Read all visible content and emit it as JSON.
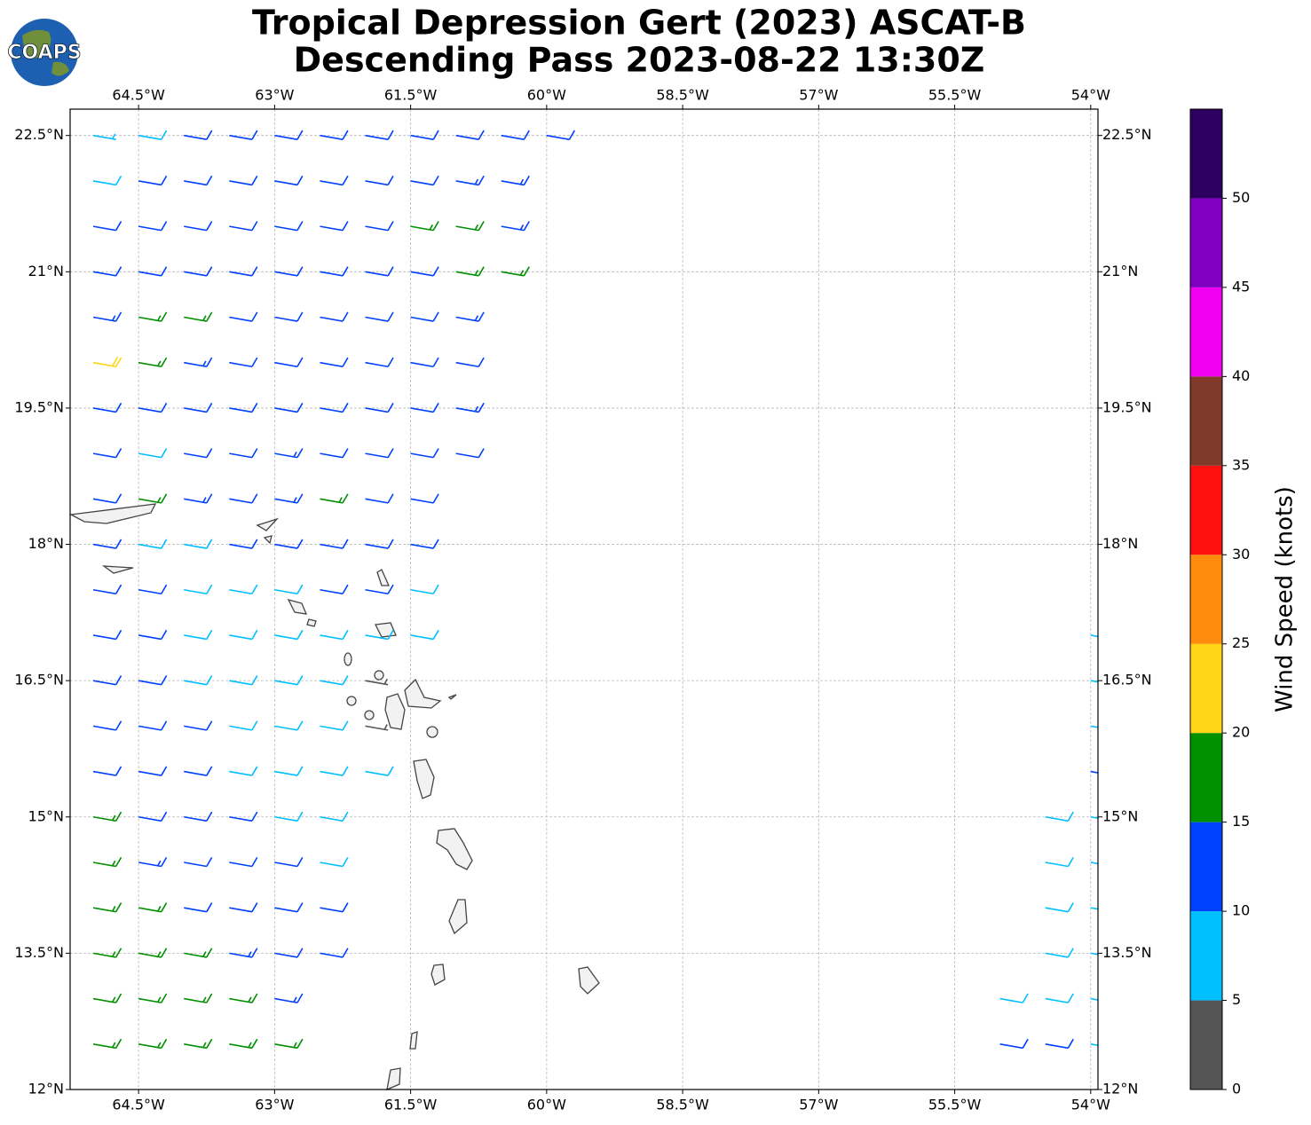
{
  "chart_data": {
    "type": "wind-barbs",
    "title": "Tropical Depression Gert (2023) ASCAT-B",
    "subtitle": "Descending Pass 2023-08-22 13:30Z",
    "logo": "COAPS",
    "xlim": [
      -65.255,
      -53.92
    ],
    "ylim": [
      12,
      22.79
    ],
    "xticks": [
      {
        "value": -64.5,
        "label": "64.5°W"
      },
      {
        "value": -63,
        "label": "63°W"
      },
      {
        "value": -61.5,
        "label": "61.5°W"
      },
      {
        "value": -60,
        "label": "60°W"
      },
      {
        "value": -58.5,
        "label": "58.5°W"
      },
      {
        "value": -57,
        "label": "57°W"
      },
      {
        "value": -55.5,
        "label": "55.5°W"
      },
      {
        "value": -54,
        "label": "54°W"
      }
    ],
    "yticks": [
      {
        "value": 12,
        "label": "12°N"
      },
      {
        "value": 13.5,
        "label": "13.5°N"
      },
      {
        "value": 15,
        "label": "15°N"
      },
      {
        "value": 16.5,
        "label": "16.5°N"
      },
      {
        "value": 18,
        "label": "18°N"
      },
      {
        "value": 19.5,
        "label": "19.5°N"
      },
      {
        "value": 21,
        "label": "21°N"
      },
      {
        "value": 22.5,
        "label": "22.5°N"
      }
    ],
    "grid": true,
    "direction_from_deg": 100,
    "colorbar": {
      "label": "Wind Speed (knots)",
      "bounds": [
        0,
        5,
        10,
        15,
        20,
        25,
        30,
        35,
        40,
        45,
        50,
        55
      ],
      "ticks": [
        0,
        5,
        10,
        15,
        20,
        25,
        30,
        35,
        40,
        45,
        50
      ],
      "colors": [
        "#555555",
        "#00bfff",
        "#0040ff",
        "#009000",
        "#ffd515",
        "#ff8c0c",
        "#ff1010",
        "#7f3a2a",
        "#f000f0",
        "#8000c0",
        "#2d0060"
      ]
    },
    "rows": [
      {
        "lat": 22.5,
        "lon": [
          -65,
          -64.5,
          -64,
          -63.5,
          -63,
          -62.5,
          -62,
          -61.5,
          -61,
          -60.5,
          -60
        ],
        "speed": [
          7,
          8,
          11,
          12,
          12,
          12,
          12,
          12,
          12,
          12,
          12
        ]
      },
      {
        "lat": 22,
        "lon": [
          -65,
          -64.5,
          -64,
          -63.5,
          -63,
          -62.5,
          -62,
          -61.5,
          -61,
          -60.5
        ],
        "speed": [
          9,
          11,
          12,
          12,
          12,
          12,
          12,
          12,
          13,
          13
        ]
      },
      {
        "lat": 21.5,
        "lon": [
          -65,
          -64.5,
          -64,
          -63.5,
          -63,
          -62.5,
          -62,
          -61.5,
          -61,
          -60.5
        ],
        "speed": [
          12,
          12,
          12,
          12,
          12,
          12,
          12,
          16,
          16,
          13
        ]
      },
      {
        "lat": 21,
        "lon": [
          -65,
          -64.5,
          -64,
          -63.5,
          -63,
          -62.5,
          -62,
          -61.5,
          -61,
          -60.5
        ],
        "speed": [
          12,
          12,
          12,
          12,
          12,
          12,
          12,
          12,
          16,
          16
        ]
      },
      {
        "lat": 20.5,
        "lon": [
          -65,
          -64.5,
          -64,
          -63.5,
          -63,
          -62.5,
          -62,
          -61.5,
          -61
        ],
        "speed": [
          13,
          16,
          17,
          12,
          12,
          12,
          12,
          12,
          13
        ]
      },
      {
        "lat": 20,
        "lon": [
          -65,
          -64.5,
          -64,
          -63.5,
          -63,
          -62.5,
          -62,
          -61.5,
          -61
        ],
        "speed": [
          21,
          17,
          13,
          12,
          12,
          12,
          12,
          12,
          12
        ]
      },
      {
        "lat": 19.5,
        "lon": [
          -65,
          -64.5,
          -64,
          -63.5,
          -63,
          -62.5,
          -62,
          -61.5,
          -61
        ],
        "speed": [
          12,
          12,
          12,
          12,
          12,
          12,
          12,
          12,
          13
        ]
      },
      {
        "lat": 19,
        "lon": [
          -65,
          -64.5,
          -64,
          -63.5,
          -63,
          -62.5,
          -62,
          -61.5,
          -61
        ],
        "speed": [
          12,
          9,
          12,
          12,
          13,
          12,
          12,
          12,
          12
        ]
      },
      {
        "lat": 18.5,
        "lon": [
          -65,
          -64.5,
          -64,
          -63.5,
          -63,
          -62.5,
          -62,
          -61.5
        ],
        "speed": [
          12,
          16,
          13,
          12,
          13,
          16,
          12,
          12
        ]
      },
      {
        "lat": 18,
        "lon": [
          -65,
          -64.5,
          -64,
          -63.5,
          -63,
          -62.5,
          -62,
          -61.5
        ],
        "speed": [
          12,
          8,
          9,
          12,
          12,
          12,
          12,
          12
        ]
      },
      {
        "lat": 17.5,
        "lon": [
          -65,
          -64.5,
          -64,
          -63.5,
          -63,
          -62.5,
          -62,
          -61.5
        ],
        "speed": [
          12,
          12,
          9,
          8,
          9,
          12,
          12,
          9
        ]
      },
      {
        "lat": 17,
        "lon": [
          -65,
          -64.5,
          -64,
          -63.5,
          -63,
          -62.5,
          -62,
          -61.5
        ],
        "speed": [
          12,
          12,
          9,
          8,
          8,
          8,
          9,
          9
        ]
      },
      {
        "lat": 16.5,
        "lon": [
          -65,
          -64.5,
          -64,
          -63.5,
          -63,
          -62.5,
          -62
        ],
        "speed": [
          12,
          12,
          9,
          8,
          8,
          8,
          4
        ]
      },
      {
        "lat": 16,
        "lon": [
          -65,
          -64.5,
          -64,
          -63.5,
          -63,
          -62.5,
          -62
        ],
        "speed": [
          12,
          12,
          12,
          8,
          8,
          8,
          4
        ]
      },
      {
        "lat": 15.5,
        "lon": [
          -65,
          -64.5,
          -64,
          -63.5,
          -63,
          -62.5,
          -62
        ],
        "speed": [
          12,
          12,
          12,
          9,
          8,
          8,
          8
        ]
      },
      {
        "lat": 15,
        "lon": [
          -65,
          -64.5,
          -64,
          -63.5,
          -63,
          -62.5
        ],
        "speed": [
          16,
          12,
          12,
          12,
          8,
          8
        ]
      },
      {
        "lat": 14.5,
        "lon": [
          -65,
          -64.5,
          -64,
          -63.5,
          -63,
          -62.5
        ],
        "speed": [
          16,
          13,
          12,
          12,
          12,
          9
        ]
      },
      {
        "lat": 14,
        "lon": [
          -65,
          -64.5,
          -64,
          -63.5,
          -63,
          -62.5
        ],
        "speed": [
          17,
          16,
          12,
          12,
          12,
          12
        ]
      },
      {
        "lat": 13.5,
        "lon": [
          -65,
          -64.5,
          -64,
          -63.5,
          -63,
          -62.5
        ],
        "speed": [
          17,
          17,
          16,
          13,
          12,
          12
        ]
      },
      {
        "lat": 13,
        "lon": [
          -65,
          -64.5,
          -64,
          -63.5,
          -63
        ],
        "speed": [
          17,
          17,
          17,
          16,
          13
        ]
      },
      {
        "lat": 12.5,
        "lon": [
          -65,
          -64.5,
          -64,
          -63.5,
          -63
        ],
        "speed": [
          17,
          17,
          17,
          17,
          16
        ]
      },
      {
        "lat": 17,
        "lon": [
          -54
        ],
        "speed": [
          9
        ]
      },
      {
        "lat": 16.5,
        "lon": [
          -54
        ],
        "speed": [
          8
        ]
      },
      {
        "lat": 16,
        "lon": [
          -54
        ],
        "speed": [
          8
        ]
      },
      {
        "lat": 15.5,
        "lon": [
          -54
        ],
        "speed": [
          12
        ]
      },
      {
        "lat": 15,
        "lon": [
          -54.5,
          -54
        ],
        "speed": [
          9,
          9
        ]
      },
      {
        "lat": 14.5,
        "lon": [
          -54.5,
          -54
        ],
        "speed": [
          9,
          8
        ]
      },
      {
        "lat": 14,
        "lon": [
          -54.5,
          -54
        ],
        "speed": [
          8,
          9
        ]
      },
      {
        "lat": 13.5,
        "lon": [
          -54.5,
          -54
        ],
        "speed": [
          9,
          9
        ]
      },
      {
        "lat": 13,
        "lon": [
          -55,
          -54.5,
          -54
        ],
        "speed": [
          8,
          9,
          9
        ]
      },
      {
        "lat": 12.5,
        "lon": [
          -55,
          -54.5,
          -54
        ],
        "speed": [
          12,
          12,
          9
        ]
      }
    ]
  }
}
